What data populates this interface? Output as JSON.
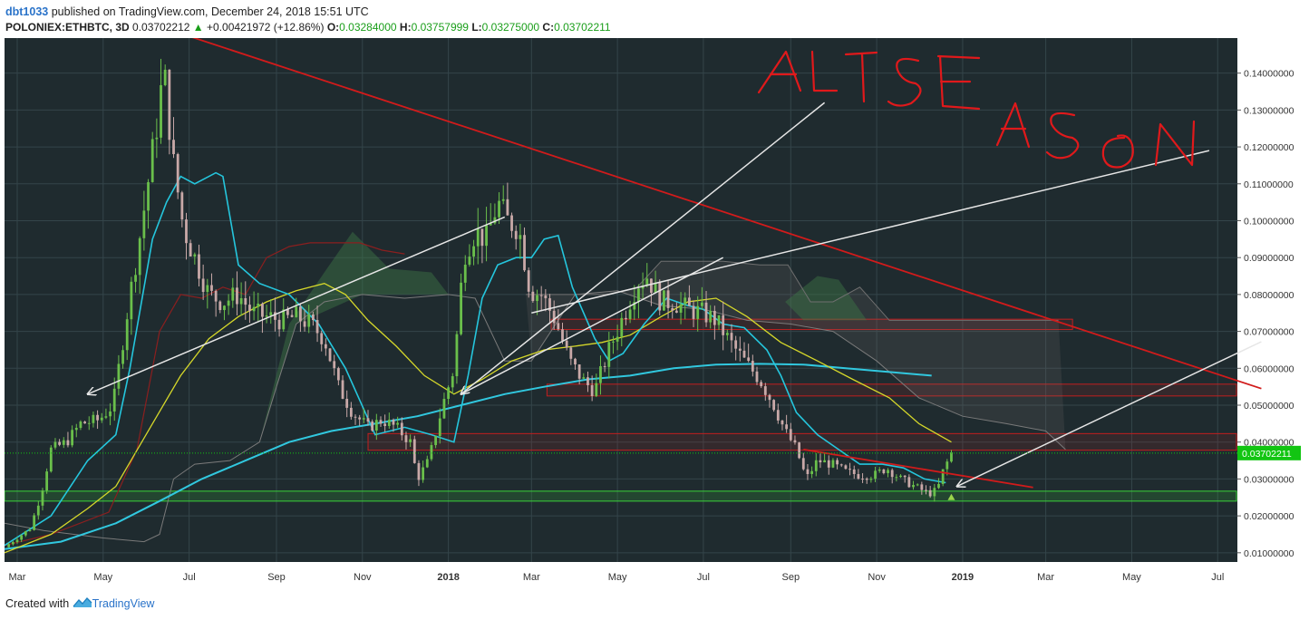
{
  "header": {
    "user": "dbt1033",
    "published_text": "published on TradingView.com, December 24, 2018 15:51 UTC",
    "symbol": "POLONIEX:ETHBTC, 3D",
    "last": "0.03702212",
    "change_arrow": "▲",
    "change": "+0.00421972 (+12.86%)",
    "o_label": "O:",
    "o_value": "0.03284000",
    "h_label": "H:",
    "h_value": "0.03757999",
    "l_label": "L:",
    "l_value": "0.03275000",
    "c_label": "C:",
    "c_value": "0.03702211"
  },
  "footer": {
    "created_with": "Created with",
    "brand": "TradingView",
    "brand_icon": "tradingview-logo-icon"
  },
  "annotation": {
    "text": "ALTSEASON",
    "color": "#e0191b"
  },
  "colors": {
    "background": "#1f2b2f",
    "axis_panel": "#ffffff",
    "grid": "#34454a",
    "up_candle": "#6abf4b",
    "down_candle": "#c9a9a8",
    "price_label_bg": "#12c512",
    "ema_short": "#25c6dd",
    "ema_long": "#31c8df",
    "sma_yellow": "#d6d82a",
    "ichimoku_dark_red": "#8b1f1f",
    "ichimoku_gray": "#7a7a7a",
    "cloud_green": "#2e5a3a",
    "cloud_red": "#3a2d2d",
    "trend_red": "#d11b1b",
    "trend_white": "#e6e6e6",
    "zone_red": "#c21f1f",
    "zone_green": "#39d339"
  },
  "chart_data": {
    "type": "candlestick",
    "title": "",
    "xlabel": "",
    "ylabel": "",
    "ylim": [
      0.0075,
      0.1495
    ],
    "y_axis_side": "right",
    "y_ticks": [
      "0.01000000",
      "0.02000000",
      "0.03000000",
      "0.04000000",
      "0.05000000",
      "0.06000000",
      "0.07000000",
      "0.08000000",
      "0.09000000",
      "0.10000000",
      "0.11000000",
      "0.12000000",
      "0.13000000",
      "0.14000000"
    ],
    "x_ticks": [
      {
        "label": "Mar",
        "date": "2017-03-01"
      },
      {
        "label": "May",
        "date": "2017-05-01"
      },
      {
        "label": "Jul",
        "date": "2017-07-01"
      },
      {
        "label": "Sep",
        "date": "2017-09-01"
      },
      {
        "label": "Nov",
        "date": "2017-11-01"
      },
      {
        "label": "2018",
        "date": "2018-01-01",
        "bold": true
      },
      {
        "label": "Mar",
        "date": "2018-03-01"
      },
      {
        "label": "May",
        "date": "2018-05-01"
      },
      {
        "label": "Jul",
        "date": "2018-07-01"
      },
      {
        "label": "Sep",
        "date": "2018-09-01"
      },
      {
        "label": "Nov",
        "date": "2018-11-01"
      },
      {
        "label": "2019",
        "date": "2019-01-01",
        "bold": true
      },
      {
        "label": "Mar",
        "date": "2019-03-01"
      },
      {
        "label": "May",
        "date": "2019-05-01"
      },
      {
        "label": "Jul",
        "date": "2019-07-01"
      }
    ],
    "x_range": [
      "2017-02-20",
      "2019-07-15"
    ],
    "grid": true,
    "current_price": {
      "value": 0.03702211,
      "label": "0.03702211"
    },
    "close_path": [
      [
        "2017-02-20",
        0.0115
      ],
      [
        "2017-03-10",
        0.0165
      ],
      [
        "2017-03-18",
        0.026
      ],
      [
        "2017-03-25",
        0.038
      ],
      [
        "2017-04-05",
        0.04
      ],
      [
        "2017-04-15",
        0.045
      ],
      [
        "2017-04-28",
        0.046
      ],
      [
        "2017-05-08",
        0.05
      ],
      [
        "2017-05-18",
        0.075
      ],
      [
        "2017-05-28",
        0.098
      ],
      [
        "2017-06-08",
        0.126
      ],
      [
        "2017-06-13",
        0.141
      ],
      [
        "2017-06-20",
        0.115
      ],
      [
        "2017-06-27",
        0.098
      ],
      [
        "2017-07-05",
        0.09
      ],
      [
        "2017-07-15",
        0.08
      ],
      [
        "2017-07-25",
        0.078
      ],
      [
        "2017-08-05",
        0.08
      ],
      [
        "2017-08-15",
        0.075
      ],
      [
        "2017-08-25",
        0.074
      ],
      [
        "2017-09-05",
        0.073
      ],
      [
        "2017-09-15",
        0.074
      ],
      [
        "2017-09-25",
        0.072
      ],
      [
        "2017-10-05",
        0.068
      ],
      [
        "2017-10-15",
        0.055
      ],
      [
        "2017-10-25",
        0.048
      ],
      [
        "2017-11-05",
        0.044
      ],
      [
        "2017-11-15",
        0.046
      ],
      [
        "2017-11-25",
        0.044
      ],
      [
        "2017-12-05",
        0.04
      ],
      [
        "2017-12-10",
        0.03
      ],
      [
        "2017-12-18",
        0.035
      ],
      [
        "2017-12-28",
        0.05
      ],
      [
        "2018-01-05",
        0.06
      ],
      [
        "2018-01-12",
        0.091
      ],
      [
        "2018-01-20",
        0.097
      ],
      [
        "2018-01-28",
        0.095
      ],
      [
        "2018-02-05",
        0.105
      ],
      [
        "2018-02-12",
        0.1
      ],
      [
        "2018-02-20",
        0.098
      ],
      [
        "2018-02-28",
        0.081
      ],
      [
        "2018-03-08",
        0.08
      ],
      [
        "2018-03-18",
        0.073
      ],
      [
        "2018-03-28",
        0.062
      ],
      [
        "2018-04-08",
        0.056
      ],
      [
        "2018-04-15",
        0.054
      ],
      [
        "2018-04-25",
        0.065
      ],
      [
        "2018-05-05",
        0.074
      ],
      [
        "2018-05-15",
        0.083
      ],
      [
        "2018-05-22",
        0.085
      ],
      [
        "2018-06-01",
        0.078
      ],
      [
        "2018-06-10",
        0.078
      ],
      [
        "2018-06-20",
        0.076
      ],
      [
        "2018-06-30",
        0.075
      ],
      [
        "2018-07-10",
        0.073
      ],
      [
        "2018-07-20",
        0.067
      ],
      [
        "2018-07-30",
        0.062
      ],
      [
        "2018-08-10",
        0.057
      ],
      [
        "2018-08-20",
        0.05
      ],
      [
        "2018-08-28",
        0.043
      ],
      [
        "2018-09-05",
        0.038
      ],
      [
        "2018-09-12",
        0.03
      ],
      [
        "2018-09-20",
        0.035
      ],
      [
        "2018-09-30",
        0.034
      ],
      [
        "2018-10-10",
        0.032
      ],
      [
        "2018-10-20",
        0.031
      ],
      [
        "2018-10-30",
        0.031
      ],
      [
        "2018-11-08",
        0.033
      ],
      [
        "2018-11-18",
        0.03
      ],
      [
        "2018-11-28",
        0.028
      ],
      [
        "2018-12-08",
        0.026
      ],
      [
        "2018-12-14",
        0.027
      ],
      [
        "2018-12-18",
        0.032
      ],
      [
        "2018-12-24",
        0.037
      ]
    ],
    "indicators": {
      "ema_short_cyan": [
        [
          "2017-02-20",
          0.012
        ],
        [
          "2017-03-25",
          0.02
        ],
        [
          "2017-04-20",
          0.035
        ],
        [
          "2017-05-10",
          0.042
        ],
        [
          "2017-05-20",
          0.06
        ],
        [
          "2017-06-05",
          0.095
        ],
        [
          "2017-06-15",
          0.105
        ],
        [
          "2017-06-25",
          0.112
        ],
        [
          "2017-07-05",
          0.11
        ],
        [
          "2017-07-20",
          0.113
        ],
        [
          "2017-07-25",
          0.112
        ],
        [
          "2017-08-05",
          0.088
        ],
        [
          "2017-08-20",
          0.083
        ],
        [
          "2017-09-10",
          0.08
        ],
        [
          "2017-10-01",
          0.072
        ],
        [
          "2017-10-20",
          0.06
        ],
        [
          "2017-11-10",
          0.042
        ],
        [
          "2017-12-01",
          0.044
        ],
        [
          "2017-12-20",
          0.042
        ],
        [
          "2018-01-05",
          0.04
        ],
        [
          "2018-01-15",
          0.058
        ],
        [
          "2018-01-25",
          0.079
        ],
        [
          "2018-02-05",
          0.088
        ],
        [
          "2018-02-18",
          0.09
        ],
        [
          "2018-03-01",
          0.09
        ],
        [
          "2018-03-10",
          0.095
        ],
        [
          "2018-03-20",
          0.096
        ],
        [
          "2018-03-30",
          0.082
        ],
        [
          "2018-04-15",
          0.068
        ],
        [
          "2018-04-25",
          0.062
        ],
        [
          "2018-05-05",
          0.064
        ],
        [
          "2018-05-20",
          0.072
        ],
        [
          "2018-06-05",
          0.079
        ],
        [
          "2018-06-20",
          0.077
        ],
        [
          "2018-07-01",
          0.076
        ],
        [
          "2018-07-15",
          0.072
        ],
        [
          "2018-07-30",
          0.071
        ],
        [
          "2018-08-15",
          0.065
        ],
        [
          "2018-08-25",
          0.058
        ],
        [
          "2018-09-05",
          0.048
        ],
        [
          "2018-09-20",
          0.042
        ],
        [
          "2018-10-05",
          0.038
        ],
        [
          "2018-10-20",
          0.034
        ],
        [
          "2018-11-05",
          0.034
        ],
        [
          "2018-11-20",
          0.033
        ],
        [
          "2018-12-05",
          0.03
        ],
        [
          "2018-12-20",
          0.029
        ]
      ],
      "sma_yellow": [
        [
          "2017-02-20",
          0.01
        ],
        [
          "2017-03-25",
          0.015
        ],
        [
          "2017-04-20",
          0.022
        ],
        [
          "2017-05-10",
          0.028
        ],
        [
          "2017-06-05",
          0.045
        ],
        [
          "2017-06-25",
          0.058
        ],
        [
          "2017-07-15",
          0.068
        ],
        [
          "2017-08-05",
          0.074
        ],
        [
          "2017-08-25",
          0.078
        ],
        [
          "2017-09-15",
          0.081
        ],
        [
          "2017-10-05",
          0.083
        ],
        [
          "2017-10-20",
          0.08
        ],
        [
          "2017-11-05",
          0.073
        ],
        [
          "2017-11-25",
          0.066
        ],
        [
          "2017-12-15",
          0.058
        ],
        [
          "2018-01-05",
          0.053
        ],
        [
          "2018-01-25",
          0.057
        ],
        [
          "2018-02-15",
          0.062
        ],
        [
          "2018-03-10",
          0.065
        ],
        [
          "2018-04-01",
          0.066
        ],
        [
          "2018-04-20",
          0.067
        ],
        [
          "2018-05-10",
          0.069
        ],
        [
          "2018-06-01",
          0.074
        ],
        [
          "2018-06-20",
          0.078
        ],
        [
          "2018-07-10",
          0.079
        ],
        [
          "2018-08-01",
          0.074
        ],
        [
          "2018-08-25",
          0.067
        ],
        [
          "2018-09-20",
          0.062
        ],
        [
          "2018-10-15",
          0.057
        ],
        [
          "2018-11-10",
          0.052
        ],
        [
          "2018-12-01",
          0.045
        ],
        [
          "2018-12-24",
          0.04
        ]
      ],
      "ema_long_cyan": [
        [
          "2017-02-20",
          0.011
        ],
        [
          "2017-04-01",
          0.013
        ],
        [
          "2017-05-10",
          0.018
        ],
        [
          "2017-06-10",
          0.024
        ],
        [
          "2017-07-10",
          0.03
        ],
        [
          "2017-08-10",
          0.035
        ],
        [
          "2017-09-10",
          0.04
        ],
        [
          "2017-10-10",
          0.043
        ],
        [
          "2017-11-10",
          0.045
        ],
        [
          "2017-12-10",
          0.047
        ],
        [
          "2018-01-10",
          0.05
        ],
        [
          "2018-02-10",
          0.053
        ],
        [
          "2018-03-10",
          0.055
        ],
        [
          "2018-04-10",
          0.057
        ],
        [
          "2018-05-10",
          0.058
        ],
        [
          "2018-06-10",
          0.06
        ],
        [
          "2018-07-10",
          0.061
        ],
        [
          "2018-08-10",
          0.0612
        ],
        [
          "2018-09-10",
          0.061
        ],
        [
          "2018-10-10",
          0.06
        ],
        [
          "2018-11-10",
          0.059
        ],
        [
          "2018-12-10",
          0.058
        ]
      ],
      "ichimoku_dark_red": [
        [
          "2017-02-20",
          0.012
        ],
        [
          "2017-03-25",
          0.015
        ],
        [
          "2017-05-05",
          0.021
        ],
        [
          "2017-05-25",
          0.038
        ],
        [
          "2017-06-10",
          0.07
        ],
        [
          "2017-06-25",
          0.08
        ],
        [
          "2017-07-10",
          0.079
        ],
        [
          "2017-07-25",
          0.082
        ],
        [
          "2017-08-10",
          0.08
        ],
        [
          "2017-08-25",
          0.09
        ],
        [
          "2017-09-10",
          0.093
        ],
        [
          "2017-09-25",
          0.094
        ],
        [
          "2017-10-15",
          0.094
        ],
        [
          "2017-10-30",
          0.094
        ],
        [
          "2017-11-15",
          0.092
        ],
        [
          "2017-12-01",
          0.091
        ]
      ],
      "ichimoku_gray": [
        [
          "2017-02-20",
          0.018
        ],
        [
          "2017-03-20",
          0.016
        ],
        [
          "2017-05-01",
          0.014
        ],
        [
          "2017-05-30",
          0.013
        ],
        [
          "2017-06-10",
          0.015
        ],
        [
          "2017-06-20",
          0.03
        ],
        [
          "2017-07-05",
          0.034
        ],
        [
          "2017-07-30",
          0.035
        ],
        [
          "2017-08-20",
          0.04
        ],
        [
          "2017-09-01",
          0.055
        ],
        [
          "2017-09-15",
          0.072
        ],
        [
          "2017-10-05",
          0.078
        ],
        [
          "2017-11-01",
          0.08
        ],
        [
          "2017-12-01",
          0.079
        ],
        [
          "2018-01-01",
          0.08
        ],
        [
          "2018-01-20",
          0.079
        ],
        [
          "2018-02-10",
          0.062
        ],
        [
          "2018-03-01",
          0.062
        ],
        [
          "2018-04-01",
          0.08
        ],
        [
          "2018-05-01",
          0.081
        ],
        [
          "2018-06-01",
          0.077
        ],
        [
          "2018-07-01",
          0.076
        ],
        [
          "2018-08-01",
          0.073
        ],
        [
          "2018-09-01",
          0.072
        ],
        [
          "2018-10-01",
          0.07
        ],
        [
          "2018-11-01",
          0.062
        ],
        [
          "2018-12-01",
          0.052
        ],
        [
          "2019-01-01",
          0.047
        ],
        [
          "2019-02-01",
          0.045
        ],
        [
          "2019-03-01",
          0.043
        ],
        [
          "2019-03-15",
          0.038
        ]
      ],
      "cloud_top": [
        [
          "2018-02-25",
          0.08
        ],
        [
          "2018-03-15",
          0.08
        ],
        [
          "2018-04-05",
          0.08
        ],
        [
          "2018-04-25",
          0.08
        ],
        [
          "2018-05-15",
          0.082
        ],
        [
          "2018-06-01",
          0.089
        ],
        [
          "2018-06-20",
          0.089
        ],
        [
          "2018-07-15",
          0.089
        ],
        [
          "2018-08-10",
          0.088
        ],
        [
          "2018-08-30",
          0.088
        ],
        [
          "2018-09-15",
          0.078
        ],
        [
          "2018-10-01",
          0.078
        ],
        [
          "2018-10-20",
          0.082
        ],
        [
          "2018-11-10",
          0.073
        ],
        [
          "2018-12-05",
          0.073
        ],
        [
          "2019-01-05",
          0.073
        ],
        [
          "2019-02-05",
          0.073
        ],
        [
          "2019-03-10",
          0.073
        ]
      ]
    },
    "trendlines": [
      {
        "name": "",
        "color": "red",
        "from": [
          "2017-07-01",
          0.15
        ],
        "to": [
          "2019-08-01",
          0.0545
        ]
      },
      {
        "name": "",
        "color": "red",
        "from": [
          "2018-09-10",
          0.038
        ],
        "to": [
          "2019-02-20",
          0.0277
        ]
      },
      {
        "name": "",
        "color": "white",
        "from": [
          "2017-04-20",
          0.053
        ],
        "to": [
          "2018-02-10",
          0.101
        ]
      },
      {
        "name": "",
        "color": "white",
        "from": [
          "2018-01-10",
          0.053
        ],
        "to": [
          "2018-09-25",
          0.132
        ]
      },
      {
        "name": "",
        "color": "white",
        "from": [
          "2018-01-10",
          0.053
        ],
        "to": [
          "2018-07-15",
          0.09
        ]
      },
      {
        "name": "",
        "color": "white",
        "from": [
          "2018-03-01",
          0.075
        ],
        "to": [
          "2019-06-25",
          0.119
        ]
      },
      {
        "name": "",
        "color": "white",
        "from": [
          "2018-12-28",
          0.028
        ],
        "to": [
          "2019-08-01",
          0.0672
        ]
      }
    ],
    "zones": [
      {
        "color": "red",
        "x0": "2018-03-15",
        "x1": "2019-03-20",
        "y0": 0.0705,
        "y1": 0.0733
      },
      {
        "color": "red",
        "x0": "2018-03-12",
        "x1": "2019-08-01",
        "y0": 0.0525,
        "y1": 0.0557
      },
      {
        "color": "red",
        "x0": "2017-11-05",
        "x1": "2019-08-01",
        "y0": 0.0378,
        "y1": 0.0423
      },
      {
        "color": "green",
        "x0": "2017-02-20",
        "x1": "2019-07-20",
        "y0": 0.024,
        "y1": 0.0267
      }
    ]
  }
}
